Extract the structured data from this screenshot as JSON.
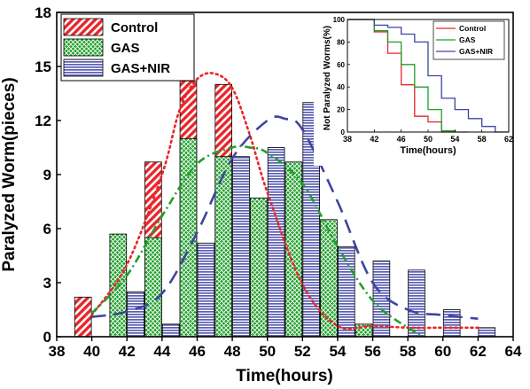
{
  "chart_data": [
    {
      "type": "bar",
      "xlabel": "Time(hours)",
      "ylabel": "Paralyzed Worm(pieces)",
      "xlim": [
        38,
        64
      ],
      "ylim": [
        0,
        18
      ],
      "xticks": [
        38,
        40,
        42,
        44,
        46,
        48,
        50,
        52,
        54,
        56,
        58,
        60,
        62,
        64
      ],
      "yticks": [
        0,
        3,
        6,
        9,
        12,
        15,
        18
      ],
      "grid": false,
      "legend_position": "top-left",
      "series": [
        {
          "name": "Control",
          "color": "#e8262b",
          "pattern": "diagonal-hatch",
          "x": [
            39.5,
            41.5,
            43.5,
            45.5,
            47.5,
            49.5,
            51.5,
            53.5,
            55.5
          ],
          "values": [
            2.2,
            4.2,
            9.7,
            14.2,
            14.0,
            6.0,
            3.7,
            2.2,
            0.5
          ]
        },
        {
          "name": "GAS",
          "color": "#1fa02a",
          "pattern": "crosshatch",
          "x": [
            41.5,
            43.5,
            45.5,
            47.5,
            49.5,
            51.5,
            53.5,
            55.5
          ],
          "values": [
            5.7,
            5.5,
            11.0,
            10.0,
            7.7,
            9.7,
            6.5,
            0.7
          ]
        },
        {
          "name": "GAS+NIR",
          "color": "#5b5fb3",
          "pattern": "horizontal-lines",
          "x": [
            42.5,
            44.5,
            46.5,
            48.5,
            50.5,
            52.5,
            54.5,
            56.5,
            58.5,
            60.5,
            62.5
          ],
          "values": [
            2.5,
            0.7,
            5.2,
            10.0,
            10.5,
            13.0,
            5.0,
            4.2,
            3.7,
            1.5,
            0.5
          ]
        }
      ],
      "fits": [
        {
          "series": "Control",
          "style": "dotted",
          "color": "#e8262b",
          "x": [
            40,
            42,
            44,
            45,
            46,
            47,
            48,
            49,
            50,
            52,
            54,
            56,
            58,
            60,
            62
          ],
          "values": [
            1.2,
            4.0,
            9.0,
            12.6,
            14.3,
            14.6,
            13.8,
            11.2,
            8.0,
            2.9,
            0.6,
            0.6,
            0.5,
            0.5,
            0.5
          ]
        },
        {
          "series": "GAS",
          "style": "dash-dot",
          "color": "#1fa02a",
          "x": [
            40,
            42,
            44,
            46,
            48,
            49,
            50,
            52,
            54,
            56,
            58,
            59
          ],
          "values": [
            1.3,
            3.4,
            6.7,
            9.6,
            10.5,
            10.5,
            10.2,
            8.5,
            5.0,
            2.0,
            0.5,
            0.0
          ]
        },
        {
          "series": "GAS+NIR",
          "style": "dashed",
          "color": "#3e44a3",
          "x": [
            40,
            42,
            44,
            46,
            48,
            50,
            51,
            52,
            54,
            56,
            58,
            60,
            62
          ],
          "values": [
            1.1,
            1.4,
            2.4,
            5.8,
            9.9,
            12.0,
            12.1,
            11.5,
            7.5,
            3.0,
            1.5,
            1.2,
            1.0
          ]
        }
      ]
    },
    {
      "type": "line",
      "xlabel": "Time(hours)",
      "ylabel": "Not Paralyzed Worms(%)",
      "xlim": [
        38,
        62
      ],
      "ylim": [
        0,
        100
      ],
      "xticks": [
        38,
        42,
        46,
        50,
        54,
        58,
        62
      ],
      "yticks": [
        0,
        20,
        40,
        60,
        80,
        100
      ],
      "grid": false,
      "legend_position": "top-right",
      "series": [
        {
          "name": "Control",
          "color": "#e8262b",
          "x": [
            38,
            40,
            42,
            44,
            46,
            48,
            50,
            52,
            54
          ],
          "values": [
            100,
            100,
            89,
            70,
            42,
            14,
            9,
            0,
            0
          ]
        },
        {
          "name": "GAS",
          "color": "#1fa02a",
          "x": [
            38,
            40,
            42,
            44,
            46,
            48,
            50,
            52,
            54,
            56
          ],
          "values": [
            100,
            100,
            90,
            80,
            60,
            40,
            20,
            1,
            0,
            0
          ]
        },
        {
          "name": "GAS+NIR",
          "color": "#3e44a3",
          "x": [
            38,
            40,
            42,
            44,
            46,
            48,
            50,
            52,
            54,
            56,
            58,
            60,
            62
          ],
          "values": [
            100,
            100,
            95,
            93,
            87,
            80,
            50,
            30,
            20,
            12,
            5,
            0,
            0
          ]
        }
      ]
    }
  ]
}
